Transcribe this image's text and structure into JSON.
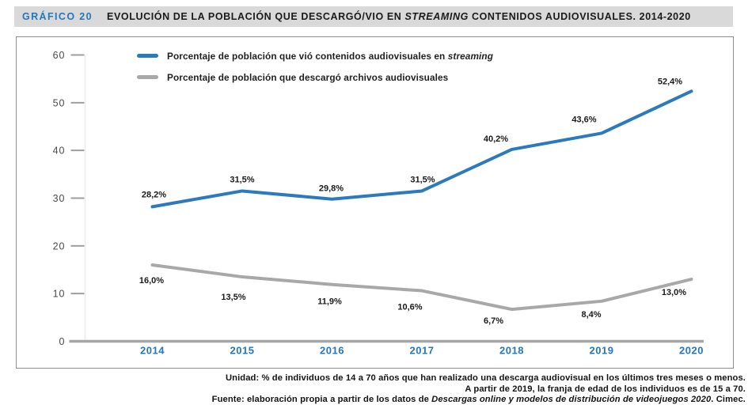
{
  "header": {
    "label": "GRÁFICO 20",
    "title_prefix": "EVOLUCIÓN DE LA POBLACIÓN QUE DESCARGÓ/VIO EN ",
    "title_italic": "STREAMING",
    "title_suffix": " CONTENIDOS AUDIOVISUALES. 2014-2020"
  },
  "legend": {
    "streaming": {
      "text": "Porcentaje de población que vió contenidos audiovisuales en ",
      "italic": "streaming"
    },
    "descargas": {
      "text": "Porcentaje de población que descargó archivos audiovisuales"
    }
  },
  "chart_data": {
    "type": "line",
    "categories": [
      "2014",
      "2015",
      "2016",
      "2017",
      "2018",
      "2019",
      "2020"
    ],
    "series": [
      {
        "name": "Porcentaje de población que vió contenidos audiovisuales en streaming",
        "color": "#2b7ac0",
        "values": [
          28.2,
          31.5,
          29.8,
          31.5,
          40.2,
          43.6,
          52.4
        ],
        "labels": [
          "28,2%",
          "31,5%",
          "29,8%",
          "31,5%",
          "40,2%",
          "43,6%",
          "52,4%"
        ]
      },
      {
        "name": "Porcentaje de población que descargó archivos audiovisuales",
        "color": "#a8a8a8",
        "values": [
          16.0,
          13.5,
          11.9,
          10.6,
          6.7,
          8.4,
          13.0
        ],
        "labels": [
          "16,0%",
          "13,5%",
          "11,9%",
          "10,6%",
          "6,7%",
          "8,4%",
          "13,0%"
        ]
      }
    ],
    "ylim": [
      0,
      60
    ],
    "yticks": [
      0,
      10,
      20,
      30,
      40,
      50,
      60
    ],
    "grid": false,
    "legend_position": "top-left"
  },
  "footer": {
    "line1": "Unidad: % de individuos de 14 a 70 años que han realizado una descarga audiovisual en los últimos tres meses o menos.",
    "line2": "A partir de 2019, la franja de edad de los individuos es de 15 a 70.",
    "line3_prefix": "Fuente: elaboración propia a partir de los datos de ",
    "line3_italic": "Descargas online y modelos de distribución de videojuegos 2020",
    "line3_suffix": ". Cimec."
  },
  "colors": {
    "accent_blue": "#2277bf",
    "line_blue": "#2b7ac0",
    "line_gray": "#a8a8a8",
    "axis_gray": "#a6a6a6",
    "tick_gray": "#9e9e9e",
    "header_bg": "#d9d9d9",
    "box_border": "#8f8f8f",
    "label_dark": "#1a1a1a",
    "ytick_text": "#4a4a4a"
  }
}
